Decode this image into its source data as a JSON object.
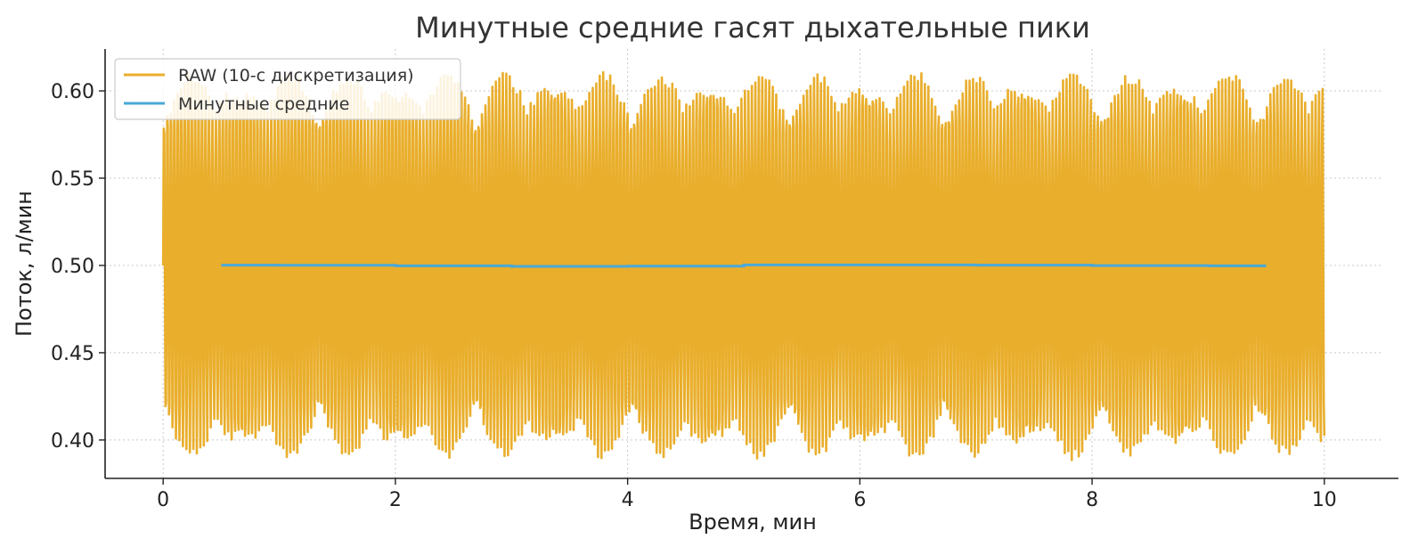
{
  "chart_data": {
    "type": "line",
    "title": "Минутные средние гасят дыхательные пики",
    "xlabel": "Время, мин",
    "ylabel": "Поток, л/мин",
    "xlim": [
      -0.5,
      10.5
    ],
    "ylim": [
      0.378,
      0.624
    ],
    "x_ticks": [
      0,
      2,
      4,
      6,
      8,
      10
    ],
    "x_tick_labels": [
      "0",
      "2",
      "4",
      "6",
      "8",
      "10"
    ],
    "y_ticks": [
      0.4,
      0.45,
      0.5,
      0.55,
      0.6
    ],
    "y_tick_labels": [
      "0.40",
      "0.45",
      "0.50",
      "0.55",
      "0.60"
    ],
    "grid": true,
    "legend_position": "top-left",
    "series": [
      {
        "name": "RAW (10-с дискретизация)",
        "color": "#e9ae2c",
        "style": "oscillation",
        "x_range": [
          0,
          10
        ],
        "mean": 0.5,
        "amplitude_min": 0.09,
        "amplitude_max": 0.11,
        "cycles_per_minute": 2.3
      },
      {
        "name": "Минутные средние",
        "color": "#4aa8d8",
        "x": [
          0.5,
          1.5,
          2.5,
          3.5,
          4.5,
          5.5,
          6.5,
          7.5,
          8.5,
          9.5
        ],
        "y": [
          0.5002,
          0.5001,
          0.4998,
          0.4995,
          0.4996,
          0.5003,
          0.5003,
          0.5002,
          0.4999,
          0.4998
        ]
      }
    ]
  }
}
